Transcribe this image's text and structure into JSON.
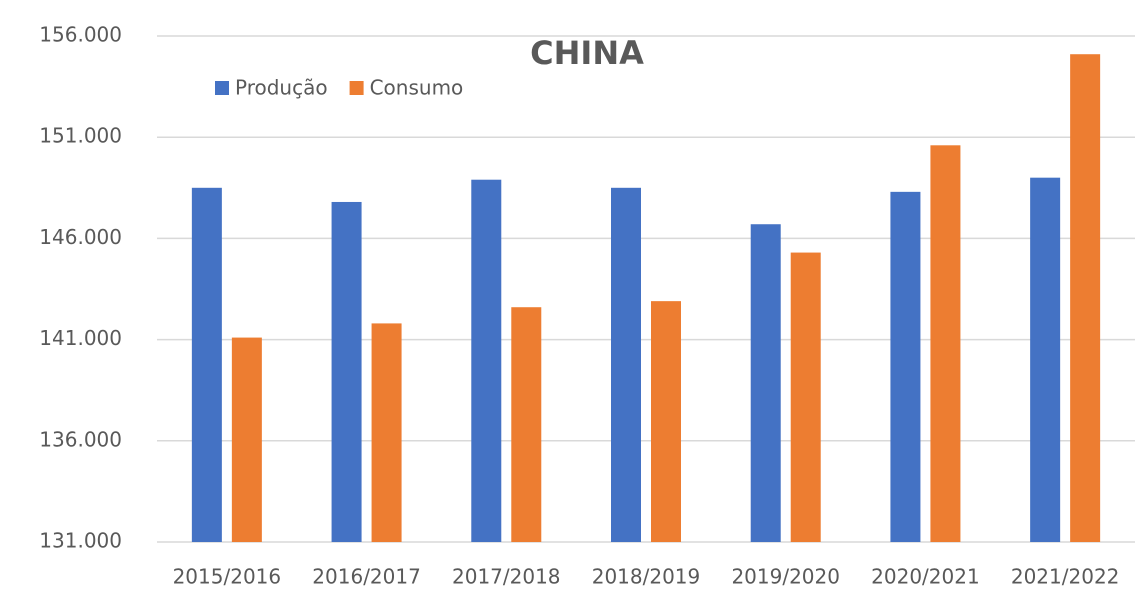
{
  "chart_data": {
    "type": "bar",
    "title": "CHINA",
    "categories": [
      "2015/2016",
      "2016/2017",
      "2017/2018",
      "2018/2019",
      "2019/2020",
      "2020/2021",
      "2021/2022"
    ],
    "series": [
      {
        "name": "Produção",
        "color": "#4472c4",
        "values": [
          148500,
          147800,
          148900,
          148500,
          146700,
          148300,
          149000
        ]
      },
      {
        "name": "Consumo",
        "color": "#ed7d31",
        "values": [
          141100,
          141800,
          142600,
          142900,
          145300,
          150600,
          155100
        ]
      }
    ],
    "ylim": [
      131000,
      156000
    ],
    "yticks": [
      {
        "value": 131000,
        "label": "131.000"
      },
      {
        "value": 136000,
        "label": "136.000"
      },
      {
        "value": 141000,
        "label": "141.000"
      },
      {
        "value": 146000,
        "label": "146.000"
      },
      {
        "value": 151000,
        "label": "151.000"
      },
      {
        "value": 156000,
        "label": "156.000"
      }
    ],
    "grid": true,
    "legend": "top-left"
  }
}
